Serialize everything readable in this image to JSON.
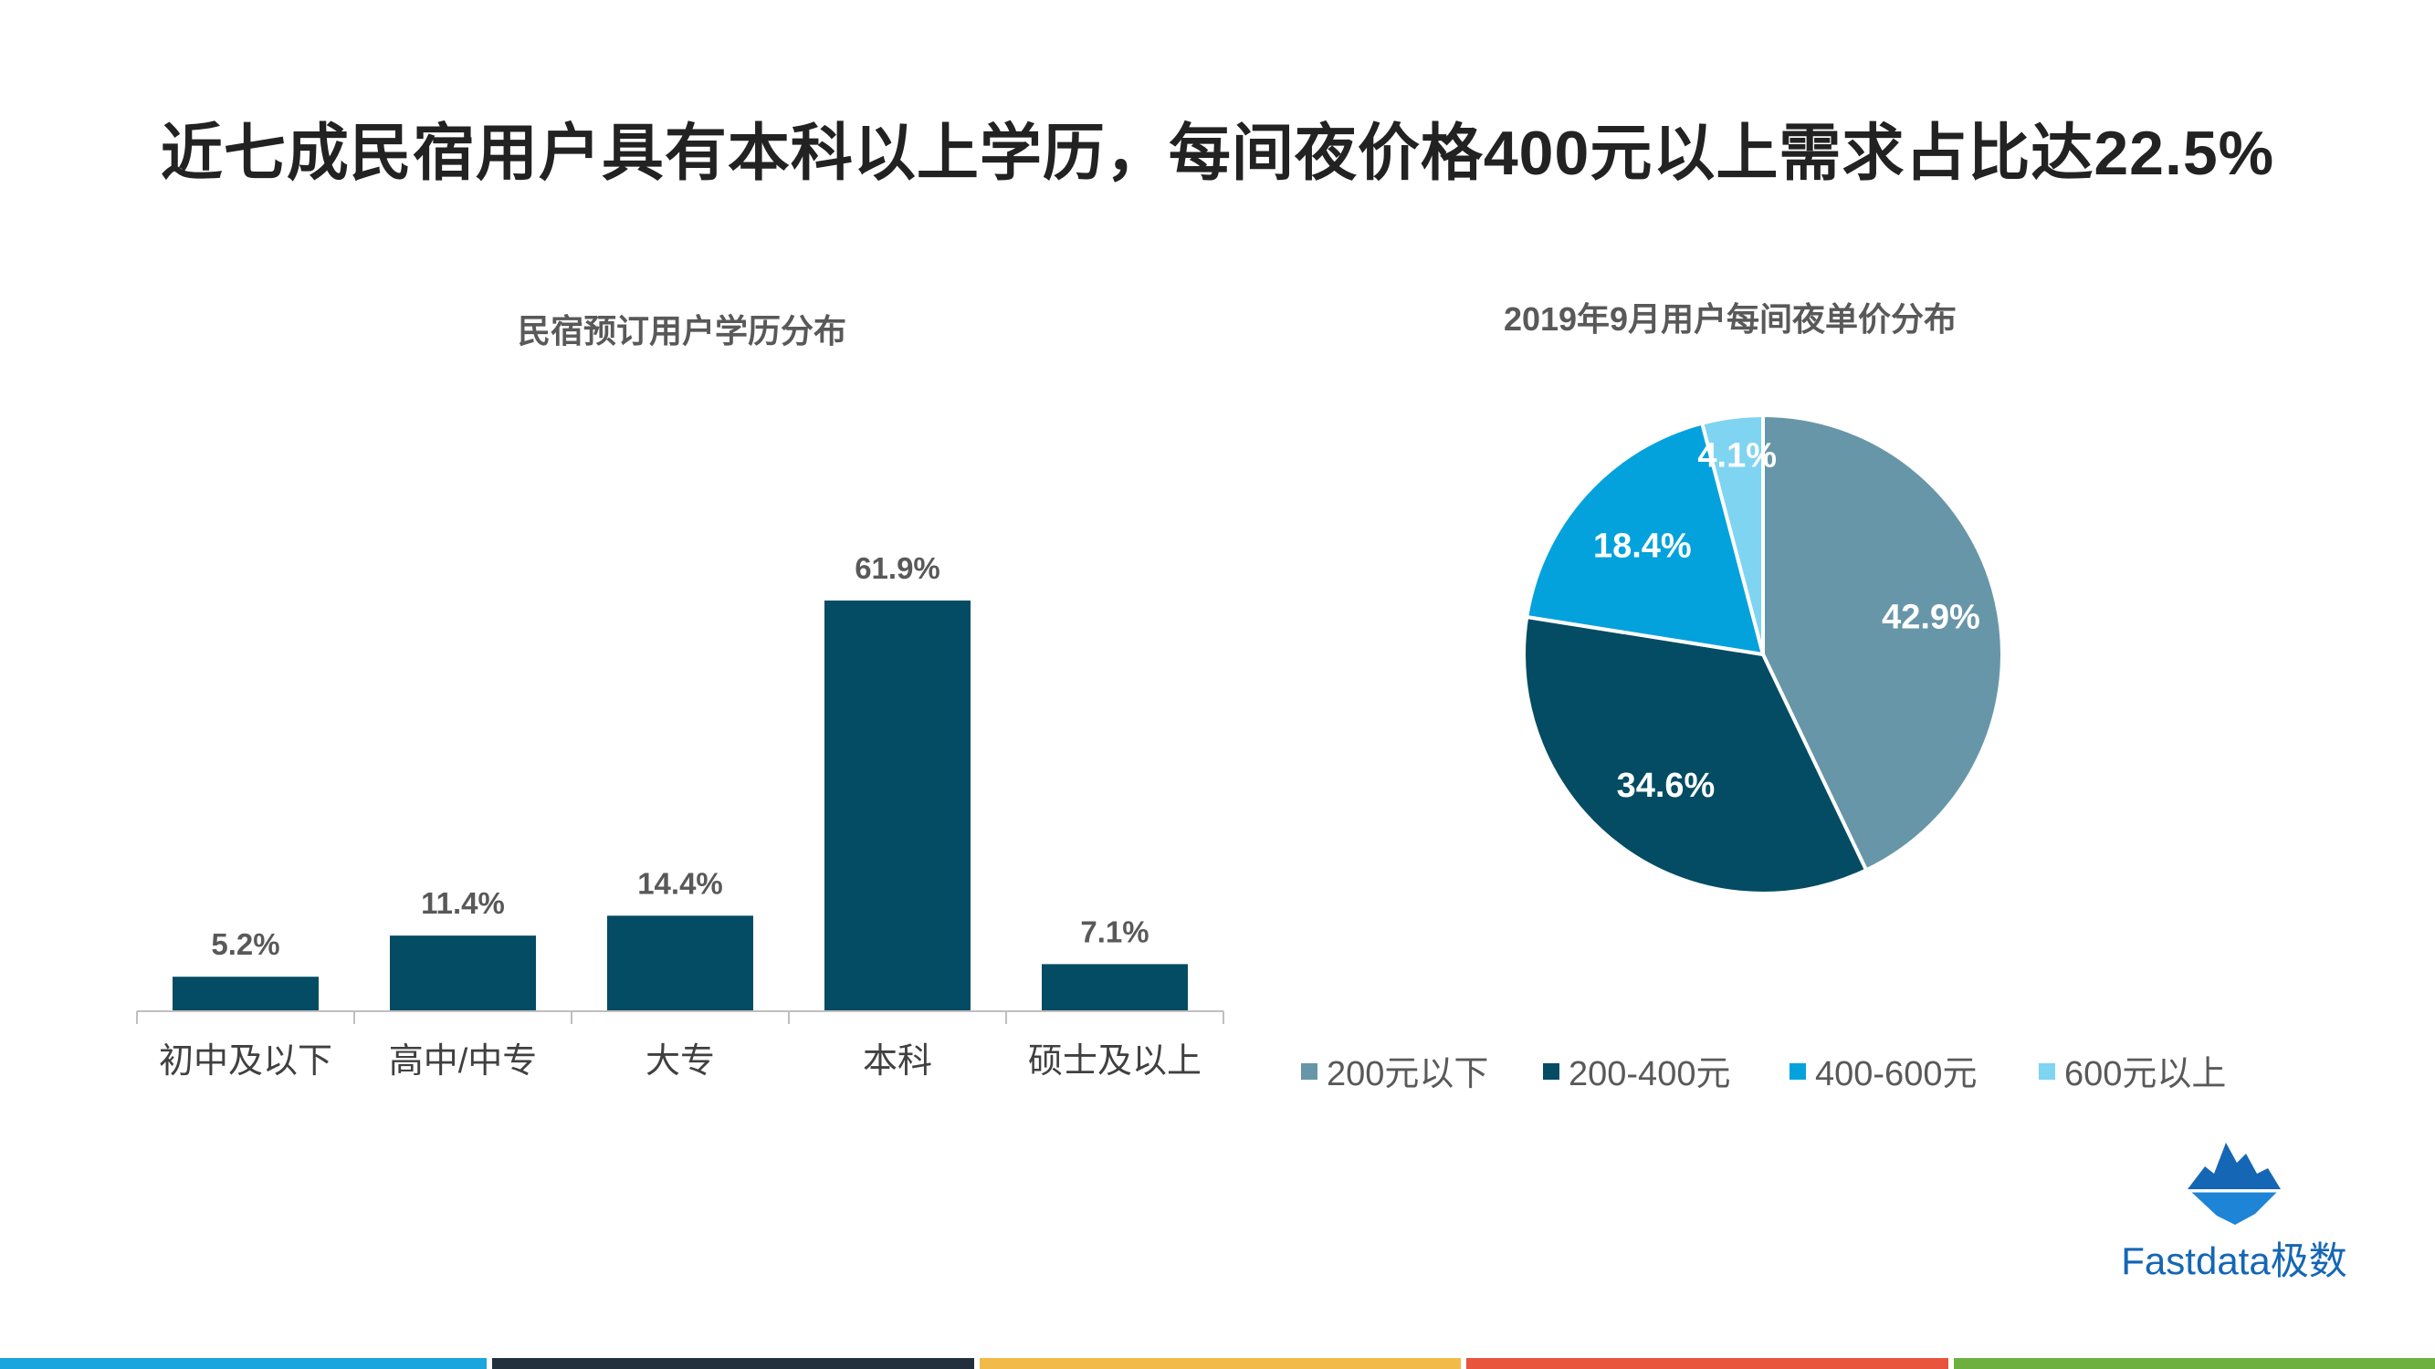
{
  "title": "近七成民宿用户具有本科以上学历，每间夜价格400元以上需求占比达22.5%",
  "chart_data": [
    {
      "type": "bar",
      "title": "民宿预订用户学历分布",
      "categories": [
        "初中及以下",
        "高中/中专",
        "大专",
        "本科",
        "硕士及以上"
      ],
      "values": [
        5.2,
        11.4,
        14.4,
        61.9,
        7.1
      ],
      "value_labels": [
        "5.2%",
        "11.4%",
        "14.4%",
        "61.9%",
        "7.1%"
      ],
      "unit": "%",
      "ylim": [
        0,
        65
      ],
      "grid": false,
      "color": "#044C63"
    },
    {
      "type": "pie",
      "title": "2019年9月用户每间夜单价分布",
      "labels": [
        "200元以下",
        "200-400元",
        "400-600元",
        "600元以上"
      ],
      "values": [
        42.9,
        34.6,
        18.4,
        4.1
      ],
      "value_labels": [
        "42.9%",
        "34.6%",
        "18.4%",
        "4.1%"
      ],
      "colors": [
        "#6796A8",
        "#034C63",
        "#04A2DC",
        "#7FD4F2"
      ],
      "legend_position": "bottom"
    }
  ],
  "logo": {
    "text": "Fastdata极数"
  },
  "bottom_bar_colors": [
    "#1AA5DE",
    "#22303E",
    "#F2BA49",
    "#E8543C",
    "#6DB040"
  ]
}
